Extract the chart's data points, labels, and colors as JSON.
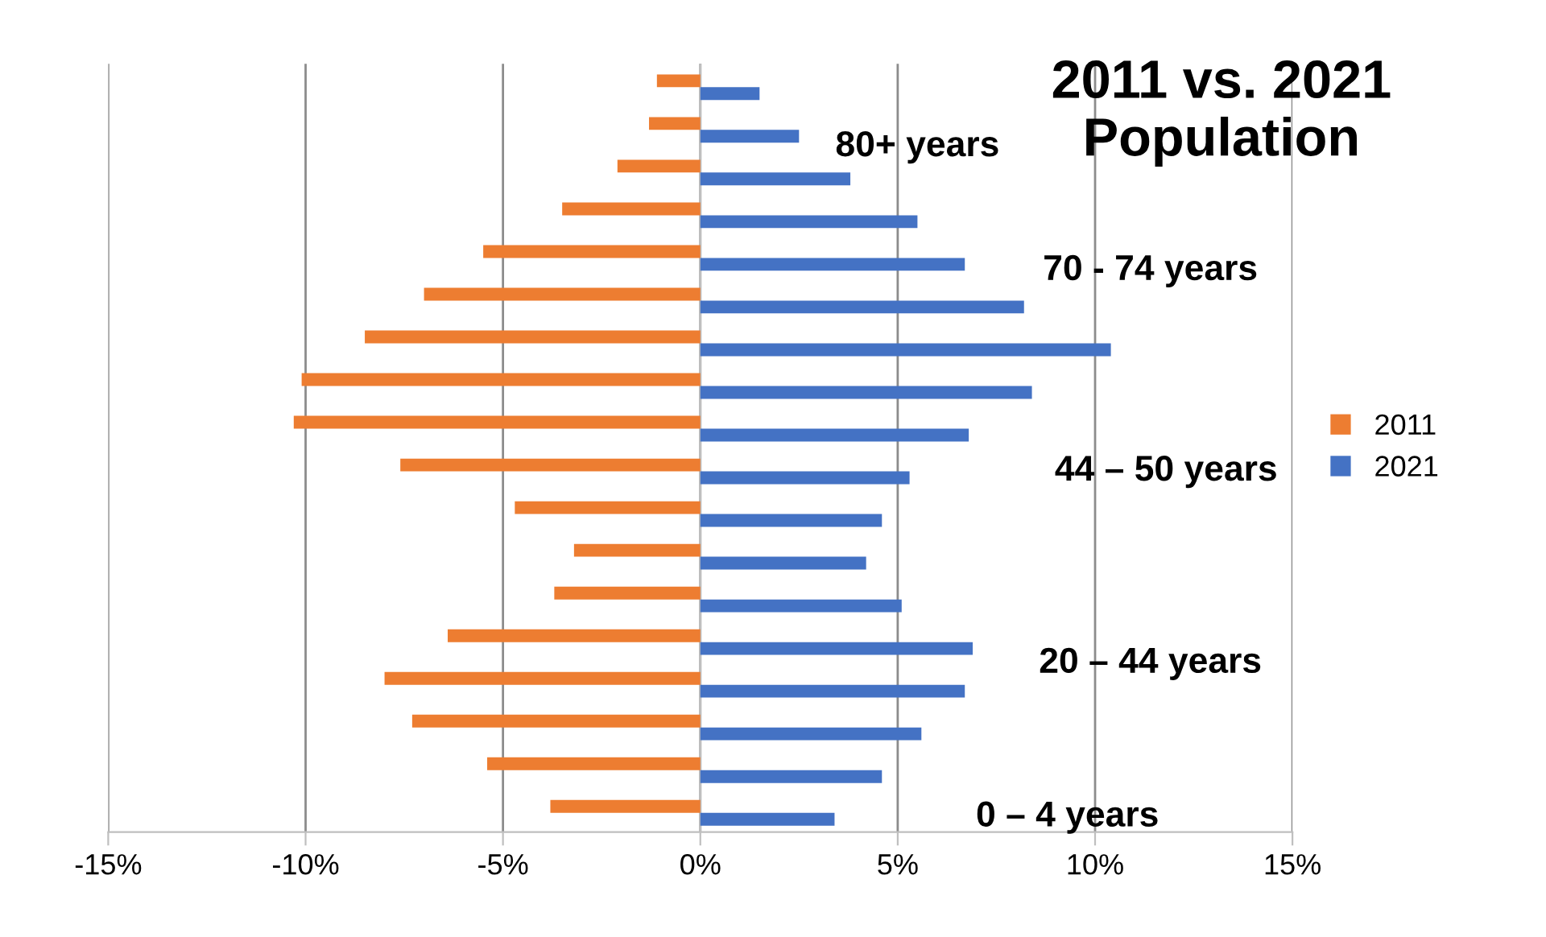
{
  "chart_data": {
    "type": "bar",
    "orientation": "horizontal",
    "title": "2011 vs. 2021 Population",
    "categories": [
      null,
      null,
      null,
      null,
      null,
      null,
      null,
      null,
      null,
      null,
      null,
      null,
      null,
      null,
      null,
      null,
      null,
      null
    ],
    "series": [
      {
        "name": "2011",
        "color": "#ed7d31",
        "values": [
          -1.1,
          -1.3,
          -2.1,
          -3.5,
          -5.5,
          -7.0,
          -8.5,
          -10.1,
          -10.3,
          -7.6,
          -4.7,
          -3.2,
          -3.7,
          -6.4,
          -8.0,
          -7.3,
          -5.4,
          -3.8
        ]
      },
      {
        "name": "2021",
        "color": "#4472c4",
        "values": [
          1.5,
          2.5,
          3.8,
          5.5,
          6.7,
          8.2,
          10.4,
          8.4,
          6.8,
          5.3,
          4.6,
          4.2,
          5.1,
          6.9,
          6.7,
          5.6,
          4.6,
          3.4
        ]
      }
    ],
    "xlim": [
      -15,
      15
    ],
    "xticks": [
      {
        "value": -15,
        "label": "-15%"
      },
      {
        "value": -10,
        "label": "-10%"
      },
      {
        "value": -5,
        "label": "-5%"
      },
      {
        "value": 0,
        "label": "0%"
      },
      {
        "value": 5,
        "label": "5%"
      },
      {
        "value": 10,
        "label": "10%"
      },
      {
        "value": 15,
        "label": "15%"
      }
    ],
    "grid": "x",
    "legend": "right",
    "annotations": [
      "80+ years",
      "70 - 74 years",
      "44 – 50 years",
      "20 – 44 years",
      "0 – 4 years"
    ]
  }
}
